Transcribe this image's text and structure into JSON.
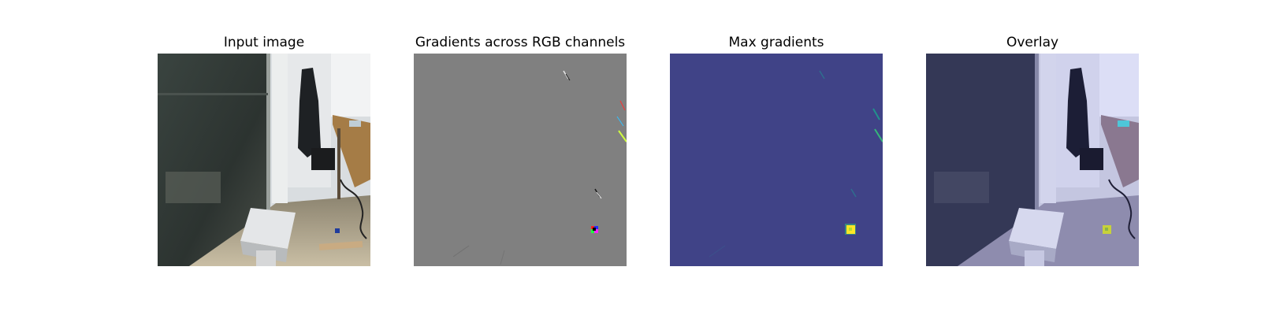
{
  "figure": {
    "panels": [
      {
        "title": "Input image"
      },
      {
        "title": "Gradients across RGB channels"
      },
      {
        "title": "Max gradients"
      },
      {
        "title": "Overlay"
      }
    ]
  },
  "colors": {
    "gradient_background": "#808080",
    "max_gradient_background": "#404387",
    "max_gradient_peak": "#fde725",
    "overlay_tint": "#7f7fd9"
  }
}
